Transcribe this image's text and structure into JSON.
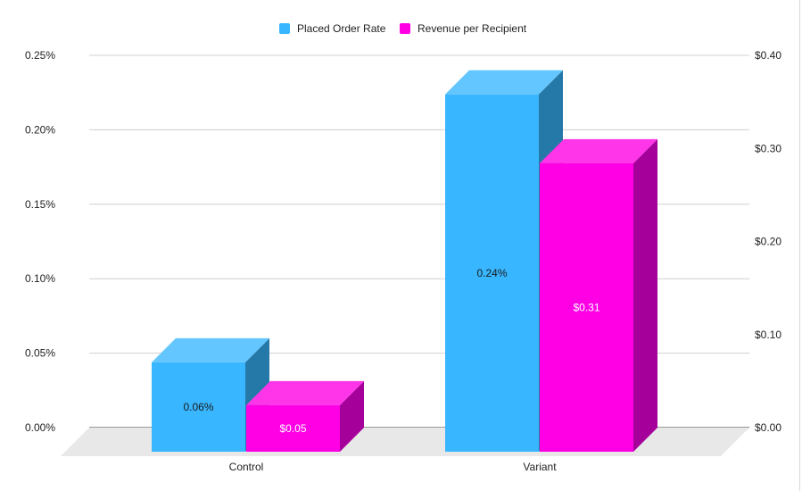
{
  "chart_data": {
    "type": "bar",
    "style": "3d-column",
    "categories": [
      "Control",
      "Variant"
    ],
    "series": [
      {
        "name": "Placed Order Rate",
        "axis": "left",
        "values": [
          0.06,
          0.24
        ],
        "unit": "%",
        "data_labels": [
          "0.06%",
          "0.24%"
        ],
        "color": "#38b6ff",
        "top_color": "#63c6ff",
        "side_color": "#2579a8",
        "label_color": "#1a1a1a"
      },
      {
        "name": "Revenue per Recipient",
        "axis": "right",
        "values": [
          0.05,
          0.31
        ],
        "unit": "$",
        "data_labels": [
          "$0.05",
          "$0.31"
        ],
        "color": "#ff00e5",
        "top_color": "#ff35ea",
        "side_color": "#a6009a",
        "label_color": "#ffffff"
      }
    ],
    "y_left": {
      "ylim": [
        0,
        0.25
      ],
      "ticks": [
        0,
        0.05,
        0.1,
        0.15,
        0.2,
        0.25
      ],
      "tick_labels": [
        "0.00%",
        "0.05%",
        "0.10%",
        "0.15%",
        "0.20%",
        "0.25%"
      ]
    },
    "y_right": {
      "ylim": [
        0,
        0.4
      ],
      "ticks": [
        0,
        0.1,
        0.2,
        0.3,
        0.4
      ],
      "tick_labels": [
        "$0.00",
        "$0.10",
        "$0.20",
        "$0.30",
        "$0.40"
      ]
    },
    "title": "",
    "xlabel": "",
    "ylabel": "",
    "grid": true,
    "legend": "top-center",
    "colors": {
      "grid": "#d0d0d0",
      "baseline": "#333333",
      "floor": "#e8e8e8"
    }
  }
}
